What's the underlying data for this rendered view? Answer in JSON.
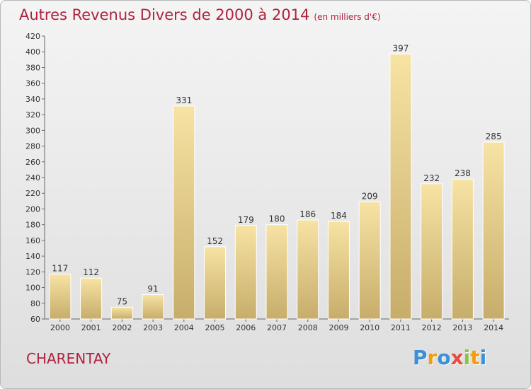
{
  "header": {
    "title": "Autres Revenus Divers de 2000 à 2014",
    "subtitle": "(en milliers d'€)"
  },
  "footer": {
    "place": "CHARENTAY",
    "logo_text": "Proxiti"
  },
  "colors": {
    "title": "#b0223f",
    "bar_light": "#f7e3a4",
    "bar_dark": "#c7ad6b"
  },
  "chart_data": {
    "type": "bar",
    "title": "Autres Revenus Divers de 2000 à 2014",
    "subtitle": "(en milliers d'€)",
    "categories": [
      "2000",
      "2001",
      "2002",
      "2003",
      "2004",
      "2005",
      "2006",
      "2007",
      "2008",
      "2009",
      "2010",
      "2011",
      "2012",
      "2013",
      "2014"
    ],
    "values": [
      117,
      112,
      75,
      91,
      331,
      152,
      179,
      180,
      186,
      184,
      209,
      397,
      232,
      238,
      285
    ],
    "ylim": [
      60,
      420
    ],
    "ytick_step": 20,
    "grid": false,
    "data_labels": true
  }
}
